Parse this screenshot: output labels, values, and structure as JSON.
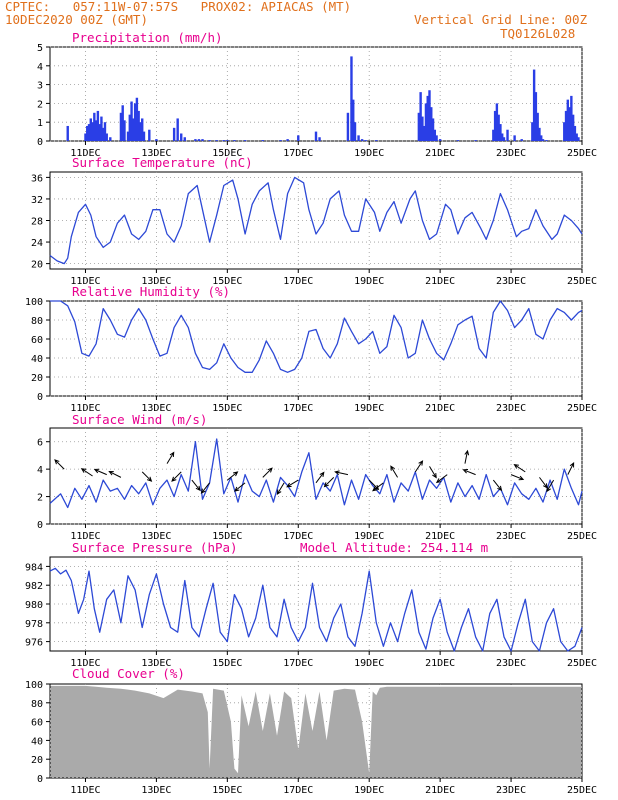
{
  "header": {
    "line1": "CPTEC:   057:11W-07:57S   PROX02: APIACAS (MT)",
    "line2_left": "10DEC2020 00Z (GMT)",
    "line2_right": "Vertical Grid Line: 00Z",
    "line3_right": "TQ0126L028"
  },
  "colors": {
    "header": "#e0701c",
    "title": "#e8008f",
    "series_line": "#2d49d6",
    "precip_bar": "#2a3ee6",
    "wind_arrow": "#000000",
    "cloud_fill": "#aaaaaa"
  },
  "x_axis": {
    "tick_labels": [
      "11DEC",
      "13DEC",
      "15DEC",
      "17DEC",
      "19DEC",
      "21DEC",
      "23DEC",
      "25DEC"
    ],
    "tick_days": [
      11,
      13,
      15,
      17,
      19,
      21,
      23,
      25
    ],
    "range_days": [
      10,
      25
    ]
  },
  "panels": {
    "precip": {
      "title": "Precipitation (mm/h)"
    },
    "temp": {
      "title": "Surface Temperature (nC)"
    },
    "rh": {
      "title": "Relative Humidity (%)"
    },
    "wind": {
      "title": "Surface Wind (m/s)"
    },
    "pres": {
      "title": "Surface Pressure (hPa)",
      "extra": "Model Altitude: 254.114 m"
    },
    "cloud": {
      "title": "Cloud Cover (%)"
    }
  },
  "chart_data": [
    {
      "id": "precip",
      "type": "bar",
      "title": "Precipitation (mm/h)",
      "ylim": [
        0,
        5
      ],
      "yticks": [
        0,
        1,
        2,
        3,
        4,
        5
      ],
      "x": [
        10.5,
        11.0,
        11.05,
        11.1,
        11.15,
        11.2,
        11.25,
        11.3,
        11.35,
        11.4,
        11.45,
        11.5,
        11.55,
        11.6,
        11.7,
        12.0,
        12.05,
        12.1,
        12.2,
        12.25,
        12.3,
        12.35,
        12.4,
        12.45,
        12.5,
        12.55,
        12.6,
        12.65,
        12.8,
        13.0,
        13.5,
        13.6,
        13.7,
        13.8,
        14.1,
        14.2,
        14.3,
        14.5,
        14.7,
        14.9,
        15.0,
        15.2,
        15.5,
        16.0,
        16.5,
        16.7,
        17.0,
        17.5,
        17.6,
        18.4,
        18.5,
        18.55,
        18.6,
        18.7,
        18.8,
        18.9,
        19.2,
        20.4,
        20.45,
        20.5,
        20.55,
        20.6,
        20.65,
        20.7,
        20.75,
        20.8,
        20.85,
        20.9,
        21.0,
        21.5,
        22.0,
        22.5,
        22.55,
        22.6,
        22.65,
        22.7,
        22.75,
        22.8,
        22.9,
        23.1,
        23.3,
        23.6,
        23.65,
        23.7,
        23.75,
        23.8,
        23.85,
        23.9,
        24.0,
        24.5,
        24.55,
        24.6,
        24.65,
        24.7,
        24.75,
        24.8,
        24.85,
        24.9
      ],
      "values": [
        0.8,
        0.4,
        0.8,
        0.9,
        1.2,
        1.0,
        1.5,
        1.1,
        1.6,
        0.9,
        1.3,
        0.7,
        1.0,
        0.4,
        0.2,
        1.5,
        1.9,
        1.1,
        0.5,
        1.4,
        2.1,
        1.2,
        2.0,
        2.3,
        1.6,
        1.0,
        1.2,
        0.5,
        0.6,
        0.1,
        0.7,
        1.2,
        0.4,
        0.2,
        0.1,
        0.1,
        0.1,
        0.05,
        0.05,
        0.05,
        0.05,
        0.05,
        0.05,
        0.05,
        0.05,
        0.1,
        0.3,
        0.5,
        0.2,
        1.5,
        4.5,
        2.2,
        1.0,
        0.3,
        0.1,
        0.05,
        0.05,
        1.5,
        2.6,
        1.3,
        0.8,
        2.0,
        2.4,
        2.7,
        1.8,
        1.2,
        0.6,
        0.3,
        0.1,
        0.05,
        0.05,
        0.6,
        1.6,
        2.0,
        1.4,
        0.9,
        0.4,
        0.2,
        0.6,
        0.3,
        0.1,
        1.0,
        3.8,
        2.6,
        1.5,
        0.7,
        0.3,
        0.1,
        0.05,
        1.0,
        1.6,
        2.2,
        1.8,
        2.4,
        1.4,
        0.8,
        0.4,
        0.2
      ]
    },
    {
      "id": "temp",
      "type": "line",
      "title": "Surface Temperature (nC)",
      "ylim": [
        19,
        37
      ],
      "yticks": [
        20,
        24,
        28,
        32,
        36
      ],
      "x": [
        10.0,
        10.2,
        10.4,
        10.5,
        10.6,
        10.8,
        11.0,
        11.15,
        11.3,
        11.5,
        11.7,
        11.9,
        12.1,
        12.3,
        12.5,
        12.7,
        12.9,
        13.1,
        13.3,
        13.5,
        13.7,
        13.9,
        14.15,
        14.3,
        14.5,
        14.7,
        14.9,
        15.15,
        15.3,
        15.5,
        15.7,
        15.9,
        16.15,
        16.3,
        16.5,
        16.7,
        16.9,
        17.15,
        17.3,
        17.5,
        17.7,
        17.9,
        18.15,
        18.3,
        18.5,
        18.7,
        18.9,
        19.15,
        19.3,
        19.5,
        19.7,
        19.9,
        20.15,
        20.3,
        20.5,
        20.7,
        20.9,
        21.15,
        21.3,
        21.5,
        21.7,
        21.9,
        22.15,
        22.3,
        22.5,
        22.7,
        22.9,
        23.15,
        23.3,
        23.5,
        23.7,
        23.9,
        24.15,
        24.3,
        24.5,
        24.7,
        24.9,
        25.0
      ],
      "values": [
        21.5,
        20.5,
        20.0,
        21.0,
        25.0,
        29.5,
        31.0,
        29.0,
        25.0,
        23.0,
        24.0,
        27.5,
        29.0,
        25.5,
        24.5,
        26.0,
        30.0,
        30.0,
        25.5,
        24.0,
        27.0,
        33.0,
        34.5,
        30.0,
        24.0,
        29.0,
        34.5,
        35.5,
        32.0,
        25.5,
        31.0,
        33.5,
        35.0,
        30.0,
        24.5,
        33.0,
        36.0,
        35.0,
        30.0,
        25.5,
        27.5,
        32.0,
        33.5,
        29.0,
        26.0,
        26.0,
        32.0,
        29.5,
        26.0,
        29.5,
        31.5,
        27.5,
        32.0,
        33.5,
        28.0,
        24.5,
        25.5,
        31.0,
        30.0,
        25.5,
        28.5,
        29.5,
        26.5,
        24.5,
        28.0,
        33.0,
        30.0,
        25.0,
        26.0,
        26.5,
        30.0,
        27.0,
        24.5,
        25.5,
        29.0,
        28.0,
        26.5,
        25.5
      ]
    },
    {
      "id": "rh",
      "type": "line",
      "title": "Relative Humidity (%)",
      "ylim": [
        0,
        100
      ],
      "yticks": [
        0,
        20,
        40,
        60,
        80,
        100
      ],
      "x": [
        10.0,
        10.3,
        10.5,
        10.7,
        10.9,
        11.1,
        11.3,
        11.5,
        11.7,
        11.9,
        12.1,
        12.3,
        12.5,
        12.7,
        12.9,
        13.1,
        13.3,
        13.5,
        13.7,
        13.9,
        14.1,
        14.3,
        14.5,
        14.7,
        14.9,
        15.1,
        15.3,
        15.5,
        15.7,
        15.9,
        16.1,
        16.3,
        16.5,
        16.7,
        16.9,
        17.1,
        17.3,
        17.5,
        17.7,
        17.9,
        18.1,
        18.3,
        18.5,
        18.7,
        18.9,
        19.1,
        19.3,
        19.5,
        19.7,
        19.9,
        20.1,
        20.3,
        20.5,
        20.7,
        20.9,
        21.1,
        21.3,
        21.5,
        21.7,
        21.9,
        22.1,
        22.3,
        22.5,
        22.7,
        22.9,
        23.1,
        23.3,
        23.5,
        23.7,
        23.9,
        24.1,
        24.3,
        24.5,
        24.7,
        24.9,
        25.0
      ],
      "values": [
        100,
        100,
        95,
        78,
        45,
        42,
        55,
        92,
        80,
        65,
        62,
        80,
        92,
        80,
        60,
        42,
        45,
        72,
        85,
        72,
        45,
        30,
        28,
        35,
        55,
        40,
        30,
        25,
        25,
        38,
        58,
        45,
        28,
        25,
        28,
        40,
        68,
        70,
        50,
        40,
        55,
        82,
        68,
        55,
        60,
        68,
        45,
        52,
        85,
        72,
        40,
        45,
        80,
        60,
        45,
        38,
        55,
        75,
        80,
        84,
        50,
        40,
        88,
        100,
        90,
        72,
        80,
        92,
        65,
        60,
        80,
        92,
        88,
        80,
        88,
        90
      ]
    },
    {
      "id": "wind",
      "type": "line",
      "title": "Surface Wind (m/s)",
      "ylim": [
        0,
        7
      ],
      "yticks": [
        0,
        2,
        4,
        6
      ],
      "x": [
        10.0,
        10.3,
        10.5,
        10.7,
        10.9,
        11.1,
        11.3,
        11.5,
        11.7,
        11.9,
        12.1,
        12.3,
        12.5,
        12.7,
        12.9,
        13.1,
        13.3,
        13.5,
        13.7,
        13.9,
        14.1,
        14.3,
        14.5,
        14.7,
        14.9,
        15.1,
        15.3,
        15.5,
        15.7,
        15.9,
        16.1,
        16.3,
        16.5,
        16.7,
        16.9,
        17.1,
        17.3,
        17.5,
        17.7,
        17.9,
        18.1,
        18.3,
        18.5,
        18.7,
        18.9,
        19.1,
        19.3,
        19.5,
        19.7,
        19.9,
        20.1,
        20.3,
        20.5,
        20.7,
        20.9,
        21.1,
        21.3,
        21.5,
        21.7,
        21.9,
        22.1,
        22.3,
        22.5,
        22.7,
        22.9,
        23.1,
        23.3,
        23.5,
        23.7,
        23.9,
        24.1,
        24.3,
        24.5,
        24.7,
        24.9,
        25.0
      ],
      "values": [
        1.5,
        2.2,
        1.2,
        2.6,
        1.8,
        2.8,
        1.6,
        3.2,
        2.4,
        2.6,
        1.8,
        2.8,
        2.2,
        3.0,
        1.4,
        2.6,
        3.2,
        2.0,
        3.6,
        2.4,
        6.0,
        1.8,
        3.0,
        6.2,
        2.2,
        3.4,
        1.6,
        3.6,
        2.4,
        2.0,
        3.2,
        1.6,
        3.4,
        2.8,
        2.0,
        3.8,
        5.2,
        1.8,
        3.0,
        2.4,
        3.6,
        1.4,
        3.2,
        1.8,
        3.6,
        2.8,
        2.2,
        3.6,
        1.6,
        3.0,
        2.4,
        3.8,
        1.8,
        3.2,
        2.6,
        3.4,
        1.6,
        3.0,
        2.0,
        2.8,
        1.8,
        3.6,
        2.0,
        2.6,
        1.4,
        3.0,
        2.2,
        1.8,
        2.6,
        1.6,
        3.2,
        1.8,
        4.0,
        2.6,
        1.4,
        2.4
      ],
      "arrows": {
        "x": [
          10.4,
          11.2,
          11.6,
          12.0,
          12.6,
          13.3,
          13.7,
          14.0,
          14.5,
          15.0,
          15.5,
          16.0,
          16.6,
          17.0,
          17.5,
          18.0,
          18.4,
          19.0,
          19.4,
          19.8,
          20.3,
          20.7,
          21.2,
          21.7,
          22.0,
          22.5,
          23.0,
          23.4,
          23.8,
          24.2,
          24.6
        ],
        "speed": [
          4.0,
          3.5,
          3.6,
          3.4,
          3.8,
          4.4,
          3.8,
          3.2,
          3.0,
          3.2,
          3.0,
          3.4,
          3.0,
          3.2,
          3.0,
          3.4,
          3.6,
          3.2,
          3.0,
          3.4,
          3.8,
          4.2,
          3.6,
          4.4,
          3.6,
          3.2,
          3.6,
          3.8,
          3.4,
          3.2,
          3.6
        ],
        "u": [
          -1,
          -1.2,
          -1.4,
          -1.2,
          1,
          0.6,
          -1,
          0.8,
          -0.8,
          1,
          -1,
          0.8,
          -0.6,
          -1,
          0.6,
          -1,
          -1.4,
          1,
          -0.8,
          -0.6,
          0.4,
          0.6,
          -0.8,
          0.2,
          -1,
          0.8,
          1,
          -1.2,
          0.6,
          -0.6,
          0.5
        ],
        "v": [
          1,
          0.8,
          0.6,
          0.6,
          -1,
          1,
          -1,
          -1,
          -1,
          0.8,
          -0.8,
          0.8,
          -1,
          -0.6,
          0.8,
          -1,
          0.3,
          -1,
          -0.6,
          1,
          0.6,
          -1,
          -0.6,
          1,
          0.4,
          -1,
          -0.4,
          0.8,
          -0.8,
          -1,
          1
        ]
      }
    },
    {
      "id": "pres",
      "type": "line",
      "title": "Surface Pressure (hPa)",
      "ylim": [
        975,
        985
      ],
      "yticks": [
        976,
        978,
        980,
        982,
        984
      ],
      "x": [
        10.0,
        10.15,
        10.3,
        10.45,
        10.6,
        10.8,
        10.95,
        11.1,
        11.25,
        11.4,
        11.6,
        11.8,
        12.0,
        12.2,
        12.4,
        12.6,
        12.8,
        13.0,
        13.2,
        13.4,
        13.6,
        13.8,
        14.0,
        14.2,
        14.4,
        14.6,
        14.8,
        15.0,
        15.2,
        15.4,
        15.6,
        15.8,
        16.0,
        16.2,
        16.4,
        16.6,
        16.8,
        17.0,
        17.2,
        17.4,
        17.6,
        17.8,
        18.0,
        18.2,
        18.4,
        18.6,
        18.8,
        19.0,
        19.2,
        19.4,
        19.6,
        19.8,
        20.0,
        20.2,
        20.4,
        20.6,
        20.8,
        21.0,
        21.2,
        21.4,
        21.6,
        21.8,
        22.0,
        22.2,
        22.4,
        22.6,
        22.8,
        23.0,
        23.2,
        23.4,
        23.6,
        23.8,
        24.0,
        24.2,
        24.4,
        24.6,
        24.8,
        25.0
      ],
      "values": [
        983.5,
        983.8,
        983.2,
        983.6,
        982.5,
        979.0,
        980.5,
        983.5,
        979.5,
        977.0,
        980.5,
        981.5,
        978.0,
        983.0,
        981.5,
        977.5,
        981.0,
        983.2,
        980.0,
        977.5,
        977.0,
        982.5,
        977.5,
        976.5,
        979.5,
        982.2,
        977.0,
        976.0,
        981.0,
        979.5,
        976.5,
        978.5,
        982.0,
        977.5,
        976.5,
        980.5,
        977.5,
        976.0,
        977.5,
        982.2,
        977.5,
        976.0,
        978.5,
        980.0,
        976.5,
        975.5,
        979.0,
        983.5,
        978.0,
        975.5,
        978.0,
        976.0,
        979.0,
        981.5,
        977.0,
        975.2,
        978.5,
        980.5,
        977.0,
        975.0,
        977.5,
        979.5,
        976.5,
        975.0,
        979.0,
        980.5,
        976.5,
        975.0,
        978.0,
        980.5,
        976.0,
        975.0,
        978.0,
        979.5,
        976.0,
        975.0,
        975.5,
        977.5
      ]
    },
    {
      "id": "cloud",
      "type": "area",
      "title": "Cloud Cover (%)",
      "ylim": [
        0,
        100
      ],
      "yticks": [
        0,
        20,
        40,
        60,
        80,
        100
      ],
      "x": [
        10.0,
        10.5,
        11.0,
        11.3,
        11.6,
        12.0,
        12.4,
        12.8,
        13.2,
        13.6,
        14.0,
        14.3,
        14.45,
        14.5,
        14.6,
        14.9,
        15.1,
        15.2,
        15.3,
        15.4,
        15.6,
        15.8,
        16.0,
        16.2,
        16.4,
        16.6,
        16.8,
        17.0,
        17.2,
        17.4,
        17.6,
        17.8,
        18.0,
        18.3,
        18.6,
        18.8,
        19.0,
        19.1,
        19.2,
        19.3,
        19.5,
        19.7,
        20.0,
        20.5,
        21.0,
        21.5,
        22.0,
        22.5,
        23.0,
        23.5,
        24.0,
        24.5,
        25.0
      ],
      "values": [
        98,
        98,
        98,
        97,
        96,
        95,
        93,
        90,
        85,
        94,
        92,
        90,
        70,
        10,
        95,
        93,
        60,
        10,
        5,
        88,
        55,
        92,
        50,
        90,
        45,
        92,
        85,
        30,
        90,
        50,
        92,
        40,
        93,
        95,
        94,
        60,
        5,
        92,
        88,
        96,
        97,
        97,
        97,
        97,
        97,
        97,
        97,
        97,
        97,
        97,
        97,
        97,
        97
      ]
    }
  ]
}
